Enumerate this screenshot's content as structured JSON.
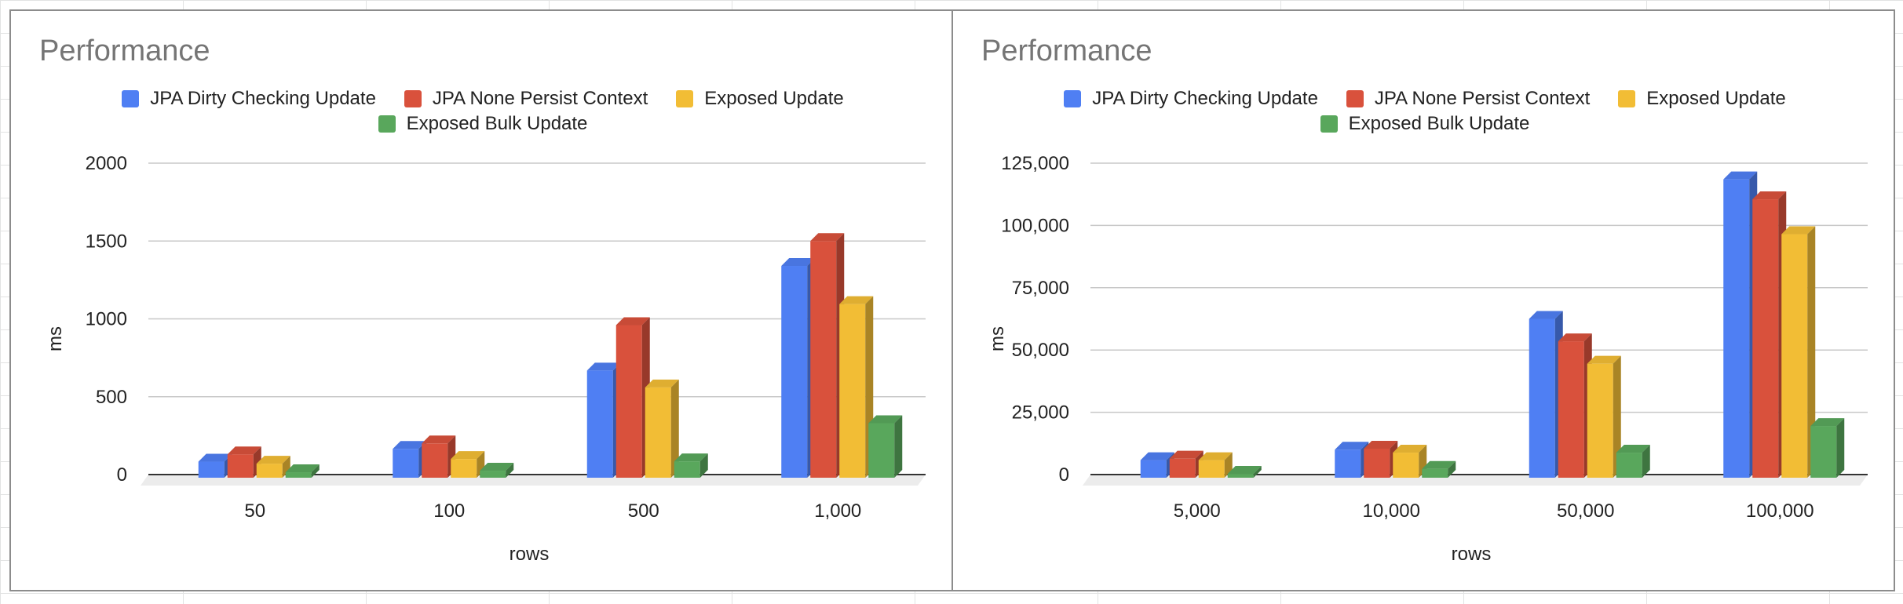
{
  "chart_data": [
    {
      "type": "bar",
      "style": "3d-clustered-column",
      "title": "Performance",
      "xlabel": "rows",
      "ylabel": "ms",
      "categories": [
        "50",
        "100",
        "500",
        "1,000"
      ],
      "ylim": [
        0,
        2000
      ],
      "yticks": [
        "0",
        "500",
        "1000",
        "1500",
        "2000"
      ],
      "ytick_values": [
        0,
        500,
        1000,
        1500,
        2000
      ],
      "grid": true,
      "legend_position": "top",
      "series": [
        {
          "name": "JPA Dirty Checking Update",
          "color": "#4f7ff3",
          "values": [
            83,
            165,
            668,
            1340
          ]
        },
        {
          "name": "JPA None Persist Context",
          "color": "#d9513c",
          "values": [
            130,
            200,
            960,
            1500
          ]
        },
        {
          "name": "Exposed Update",
          "color": "#f2bd35",
          "values": [
            70,
            100,
            560,
            1095
          ]
        },
        {
          "name": "Exposed Bulk Update",
          "color": "#59a75c",
          "values": [
            15,
            25,
            85,
            330
          ]
        }
      ]
    },
    {
      "type": "bar",
      "style": "3d-clustered-column",
      "title": "Performance",
      "xlabel": "rows",
      "ylabel": "ms",
      "categories": [
        "5,000",
        "10,000",
        "50,000",
        "100,000"
      ],
      "ylim": [
        0,
        125000
      ],
      "yticks": [
        "0",
        "25,000",
        "50,000",
        "75,000",
        "100,000",
        "125,000"
      ],
      "ytick_values": [
        0,
        25000,
        50000,
        75000,
        100000,
        125000
      ],
      "grid": true,
      "legend_position": "top",
      "series": [
        {
          "name": "JPA Dirty Checking Update",
          "color": "#4f7ff3",
          "values": [
            5800,
            10000,
            62500,
            118500
          ]
        },
        {
          "name": "JPA None Persist Context",
          "color": "#d9513c",
          "values": [
            6400,
            10400,
            53500,
            110500
          ]
        },
        {
          "name": "Exposed Update",
          "color": "#f2bd35",
          "values": [
            5800,
            8800,
            44500,
            96500
          ]
        },
        {
          "name": "Exposed Bulk Update",
          "color": "#59a75c",
          "values": [
            300,
            2300,
            8800,
            19500
          ]
        }
      ]
    }
  ]
}
